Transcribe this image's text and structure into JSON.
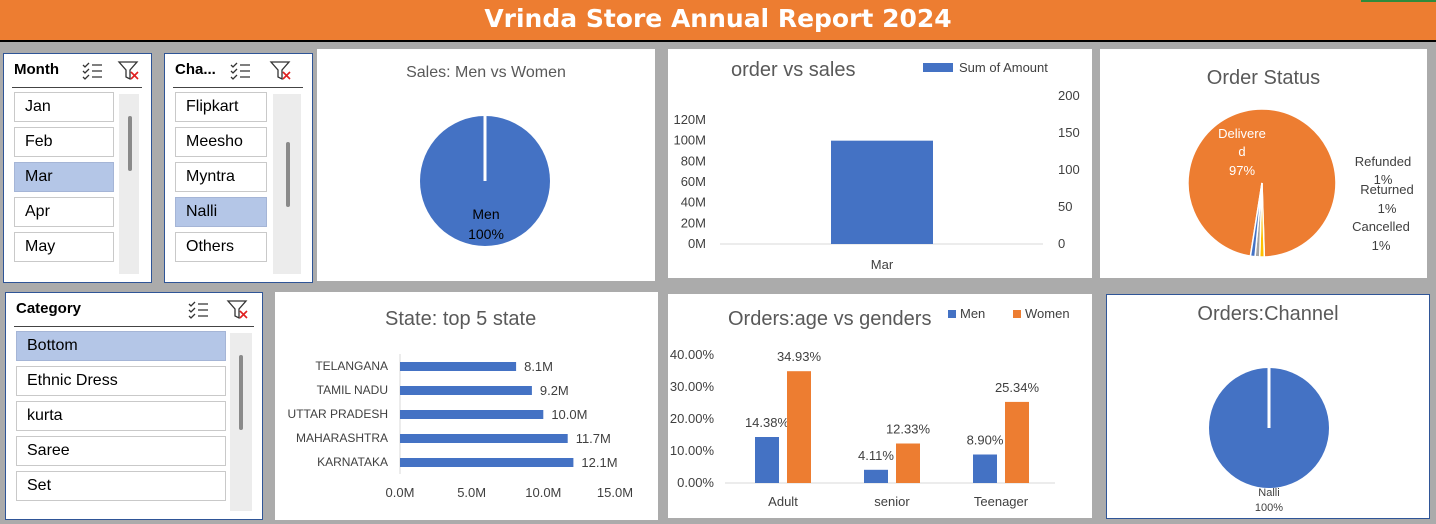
{
  "title": "Vrinda Store Annual Report 2024",
  "slicers": {
    "month": {
      "title": "Month",
      "items": [
        "Jan",
        "Feb",
        "Mar",
        "Apr",
        "May"
      ],
      "selected": "Mar"
    },
    "channel": {
      "title": "Cha...",
      "items": [
        "Flipkart",
        "Meesho",
        "Myntra",
        "Nalli",
        "Others"
      ],
      "selected": "Nalli"
    },
    "category": {
      "title": "Category",
      "items": [
        "Bottom",
        "Ethnic Dress",
        "kurta",
        "Saree",
        "Set"
      ],
      "selected": "Bottom"
    }
  },
  "colors": {
    "blue": "#4472c4",
    "orange": "#ed7d31",
    "gray": "#a5a5a5",
    "yellow": "#ffc000",
    "banner": "#ed7d31"
  },
  "icons": [
    "multi-select-icon",
    "clear-filter-icon"
  ],
  "chart_data": [
    {
      "id": "sales_gender",
      "type": "pie",
      "title": "Sales: Men vs Women",
      "slices": [
        {
          "label": "Men",
          "pct_label": "100%",
          "value": 100
        }
      ]
    },
    {
      "id": "order_sales",
      "type": "bar",
      "title": "order vs sales",
      "categories": [
        "Mar"
      ],
      "series": [
        {
          "name": "Sum of Amount",
          "values": [
            100
          ]
        }
      ],
      "y_left_ticks": [
        "0M",
        "20M",
        "40M",
        "60M",
        "80M",
        "100M",
        "120M"
      ],
      "ylim_left": [
        0,
        120
      ],
      "y_right_ticks": [
        "0",
        "50",
        "100",
        "150",
        "200"
      ],
      "ylim_right": [
        0,
        200
      ],
      "legend": "top-right"
    },
    {
      "id": "order_status",
      "type": "pie",
      "title": "Order Status",
      "slices": [
        {
          "label": "Delivered",
          "label_lines": [
            "Delivere",
            "d"
          ],
          "pct_label": "97%",
          "value": 97
        },
        {
          "label": "Refunded",
          "pct_label": "1%",
          "value": 1
        },
        {
          "label": "Returned",
          "pct_label": "1%",
          "value": 1
        },
        {
          "label": "Cancelled",
          "pct_label": "1%",
          "value": 1
        }
      ]
    },
    {
      "id": "top_states",
      "type": "bar",
      "orientation": "horizontal",
      "title": "State: top 5 state",
      "categories": [
        "KARNATAKA",
        "MAHARASHTRA",
        "UTTAR PRADESH",
        "TAMIL NADU",
        "TELANGANA"
      ],
      "values": [
        12.1,
        11.7,
        10.0,
        9.2,
        8.1
      ],
      "value_labels": [
        "12.1M",
        "11.7M",
        "10.0M",
        "9.2M",
        "8.1M"
      ],
      "x_ticks": [
        "0.0M",
        "5.0M",
        "10.0M",
        "15.0M"
      ],
      "xlim": [
        0,
        15
      ]
    },
    {
      "id": "age_gender",
      "type": "bar",
      "title": "Orders:age vs genders",
      "categories": [
        "Adult",
        "senior",
        "Teenager"
      ],
      "series": [
        {
          "name": "Men",
          "values": [
            14.38,
            4.11,
            8.9
          ],
          "labels": [
            "14.38%",
            "4.11%",
            "8.90%"
          ]
        },
        {
          "name": "Women",
          "values": [
            34.93,
            12.33,
            25.34
          ],
          "labels": [
            "34.93%",
            "12.33%",
            "25.34%"
          ]
        }
      ],
      "y_ticks": [
        "0.00%",
        "10.00%",
        "20.00%",
        "30.00%",
        "40.00%"
      ],
      "ylim": [
        0,
        40
      ],
      "legend": "top-right"
    },
    {
      "id": "channel_orders",
      "type": "pie",
      "title": "Orders:Channel",
      "slices": [
        {
          "label": "Nalli",
          "pct_label": "100%",
          "value": 100
        }
      ]
    }
  ]
}
